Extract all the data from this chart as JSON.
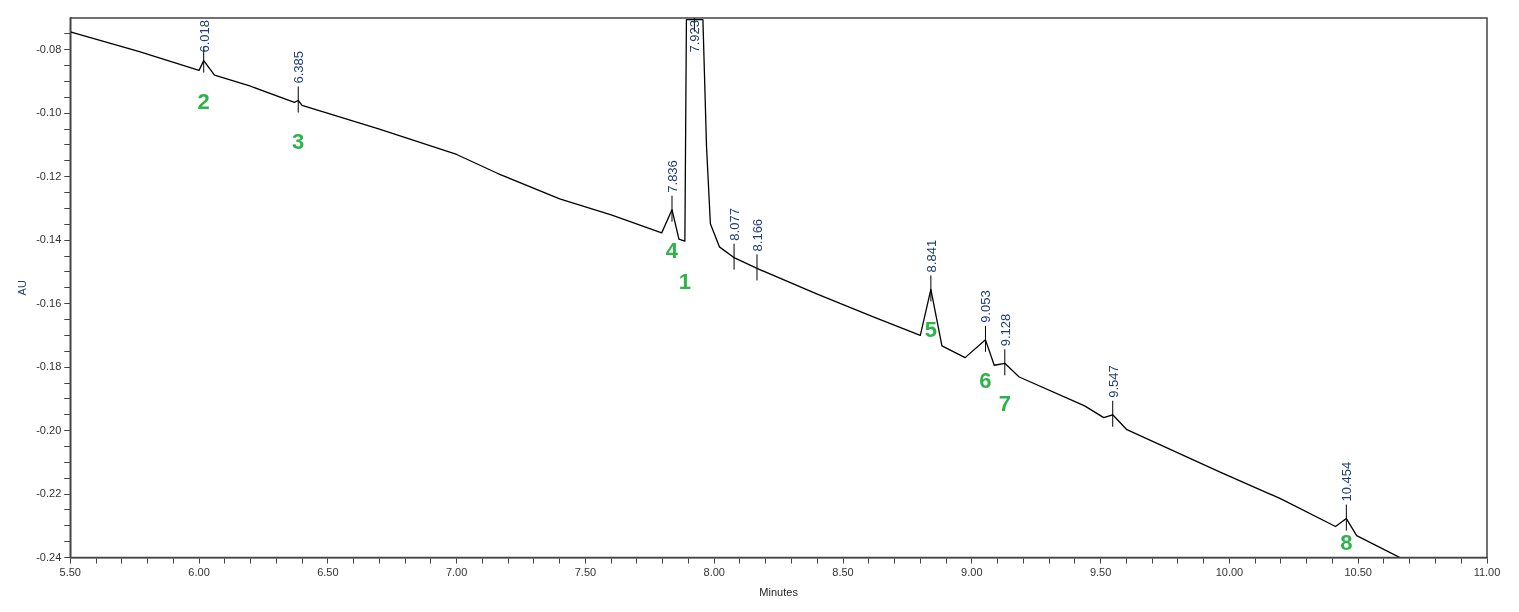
{
  "chart_data": {
    "type": "line",
    "xlabel": "Minutes",
    "ylabel": "AU",
    "xlim": [
      5.5,
      11.0
    ],
    "ylim": [
      -0.24,
      -0.07
    ],
    "xticks": [
      {
        "value": 5.5,
        "label": "5.50"
      },
      {
        "value": 5.6,
        "label": null
      },
      {
        "value": 5.7,
        "label": null
      },
      {
        "value": 5.8,
        "label": null
      },
      {
        "value": 5.9,
        "label": null
      },
      {
        "value": 6.0,
        "label": "6.00"
      },
      {
        "value": 6.1,
        "label": null
      },
      {
        "value": 6.2,
        "label": null
      },
      {
        "value": 6.3,
        "label": null
      },
      {
        "value": 6.4,
        "label": null
      },
      {
        "value": 6.5,
        "label": "6.50"
      },
      {
        "value": 6.6,
        "label": null
      },
      {
        "value": 6.7,
        "label": null
      },
      {
        "value": 6.8,
        "label": null
      },
      {
        "value": 6.9,
        "label": null
      },
      {
        "value": 7.0,
        "label": "7.00"
      },
      {
        "value": 7.1,
        "label": null
      },
      {
        "value": 7.2,
        "label": null
      },
      {
        "value": 7.3,
        "label": null
      },
      {
        "value": 7.4,
        "label": null
      },
      {
        "value": 7.5,
        "label": "7.50"
      },
      {
        "value": 7.6,
        "label": null
      },
      {
        "value": 7.7,
        "label": null
      },
      {
        "value": 7.8,
        "label": null
      },
      {
        "value": 7.9,
        "label": null
      },
      {
        "value": 8.0,
        "label": "8.00"
      },
      {
        "value": 8.1,
        "label": null
      },
      {
        "value": 8.2,
        "label": null
      },
      {
        "value": 8.3,
        "label": null
      },
      {
        "value": 8.4,
        "label": null
      },
      {
        "value": 8.5,
        "label": "8.50"
      },
      {
        "value": 8.6,
        "label": null
      },
      {
        "value": 8.7,
        "label": null
      },
      {
        "value": 8.8,
        "label": null
      },
      {
        "value": 8.9,
        "label": null
      },
      {
        "value": 9.0,
        "label": "9.00"
      },
      {
        "value": 9.1,
        "label": null
      },
      {
        "value": 9.2,
        "label": null
      },
      {
        "value": 9.3,
        "label": null
      },
      {
        "value": 9.4,
        "label": null
      },
      {
        "value": 9.5,
        "label": "9.50"
      },
      {
        "value": 9.6,
        "label": null
      },
      {
        "value": 9.7,
        "label": null
      },
      {
        "value": 9.8,
        "label": null
      },
      {
        "value": 9.9,
        "label": null
      },
      {
        "value": 10.0,
        "label": "10.00"
      },
      {
        "value": 10.1,
        "label": null
      },
      {
        "value": 10.2,
        "label": null
      },
      {
        "value": 10.3,
        "label": null
      },
      {
        "value": 10.4,
        "label": null
      },
      {
        "value": 10.5,
        "label": "10.50"
      },
      {
        "value": 10.6,
        "label": null
      },
      {
        "value": 10.7,
        "label": null
      },
      {
        "value": 10.8,
        "label": null
      },
      {
        "value": 10.9,
        "label": null
      },
      {
        "value": 11.0,
        "label": "11.00"
      }
    ],
    "yticks": [
      {
        "value": -0.24,
        "label": "-0.24"
      },
      {
        "value": -0.235,
        "label": null
      },
      {
        "value": -0.23,
        "label": null
      },
      {
        "value": -0.225,
        "label": null
      },
      {
        "value": -0.22,
        "label": "-0.22"
      },
      {
        "value": -0.215,
        "label": null
      },
      {
        "value": -0.21,
        "label": null
      },
      {
        "value": -0.205,
        "label": null
      },
      {
        "value": -0.2,
        "label": "-0.20"
      },
      {
        "value": -0.195,
        "label": null
      },
      {
        "value": -0.19,
        "label": null
      },
      {
        "value": -0.185,
        "label": null
      },
      {
        "value": -0.18,
        "label": "-0.18"
      },
      {
        "value": -0.175,
        "label": null
      },
      {
        "value": -0.17,
        "label": null
      },
      {
        "value": -0.165,
        "label": null
      },
      {
        "value": -0.16,
        "label": "-0.16"
      },
      {
        "value": -0.155,
        "label": null
      },
      {
        "value": -0.15,
        "label": null
      },
      {
        "value": -0.145,
        "label": null
      },
      {
        "value": -0.14,
        "label": "-0.14"
      },
      {
        "value": -0.135,
        "label": null
      },
      {
        "value": -0.13,
        "label": null
      },
      {
        "value": -0.125,
        "label": null
      },
      {
        "value": -0.12,
        "label": "-0.12"
      },
      {
        "value": -0.115,
        "label": null
      },
      {
        "value": -0.11,
        "label": null
      },
      {
        "value": -0.105,
        "label": null
      },
      {
        "value": -0.1,
        "label": "-0.10"
      },
      {
        "value": -0.095,
        "label": null
      },
      {
        "value": -0.09,
        "label": null
      },
      {
        "value": -0.085,
        "label": null
      },
      {
        "value": -0.08,
        "label": "-0.08"
      },
      {
        "value": -0.075,
        "label": null
      }
    ],
    "grid": false,
    "legend": false,
    "marker": "none",
    "line_style": "solid",
    "series": [
      {
        "color": "#000000",
        "x": [
          5.5,
          5.765,
          6.0,
          6.018,
          6.06,
          6.2,
          6.37,
          6.385,
          6.4,
          6.7,
          7.0,
          7.16,
          7.4,
          7.6,
          7.796,
          7.836,
          7.863,
          7.886,
          7.892,
          7.923,
          7.956,
          7.97,
          7.985,
          8.02,
          8.077,
          8.166,
          8.4,
          8.615,
          8.8,
          8.841,
          8.884,
          8.974,
          9.053,
          9.087,
          9.128,
          9.184,
          9.438,
          9.512,
          9.547,
          9.602,
          9.964,
          10.2,
          10.412,
          10.454,
          10.494,
          10.662
        ],
        "values": [
          -0.0744,
          -0.0805,
          -0.0865,
          -0.0834,
          -0.088,
          -0.0915,
          -0.0966,
          -0.096,
          -0.0975,
          -0.105,
          -0.113,
          -0.119,
          -0.127,
          -0.132,
          -0.1377,
          -0.1304,
          -0.1397,
          -0.1403,
          -0.0705,
          -0.0705,
          -0.0705,
          -0.1104,
          -0.1348,
          -0.1421,
          -0.1455,
          -0.1489,
          -0.157,
          -0.1641,
          -0.17,
          -0.1555,
          -0.1733,
          -0.177,
          -0.1714,
          -0.1794,
          -0.1788,
          -0.1831,
          -0.1922,
          -0.1959,
          -0.195,
          -0.1997,
          -0.2131,
          -0.2215,
          -0.2302,
          -0.2277,
          -0.2331,
          -0.24
        ]
      }
    ],
    "annotations": [
      {
        "text": "6.018",
        "x": 6.018,
        "y": -0.0834
      },
      {
        "text": "6.385",
        "x": 6.385,
        "y": -0.096
      },
      {
        "text": "7.836",
        "x": 7.836,
        "y": -0.1304
      },
      {
        "text": "7.923",
        "x": 7.923,
        "y": -0.0705
      },
      {
        "text": "8.077",
        "x": 8.077,
        "y": -0.1455
      },
      {
        "text": "8.166",
        "x": 8.166,
        "y": -0.1489
      },
      {
        "text": "8.841",
        "x": 8.841,
        "y": -0.1555
      },
      {
        "text": "9.053",
        "x": 9.053,
        "y": -0.1714
      },
      {
        "text": "9.128",
        "x": 9.128,
        "y": -0.1788
      },
      {
        "text": "9.547",
        "x": 9.547,
        "y": -0.195
      },
      {
        "text": "10.454",
        "x": 10.454,
        "y": -0.2277
      },
      {
        "text": "2",
        "x": 6.018,
        "y": -0.0834
      },
      {
        "text": "3",
        "x": 6.385,
        "y": -0.096
      },
      {
        "text": "4",
        "x": 7.836,
        "y": -0.1304
      },
      {
        "text": "1",
        "x": 7.886,
        "y": -0.1403
      },
      {
        "text": "5",
        "x": 8.841,
        "y": -0.1555
      },
      {
        "text": "6",
        "x": 9.053,
        "y": -0.1714
      },
      {
        "text": "7",
        "x": 9.128,
        "y": -0.1788
      },
      {
        "text": "8",
        "x": 10.454,
        "y": -0.2277
      }
    ]
  }
}
